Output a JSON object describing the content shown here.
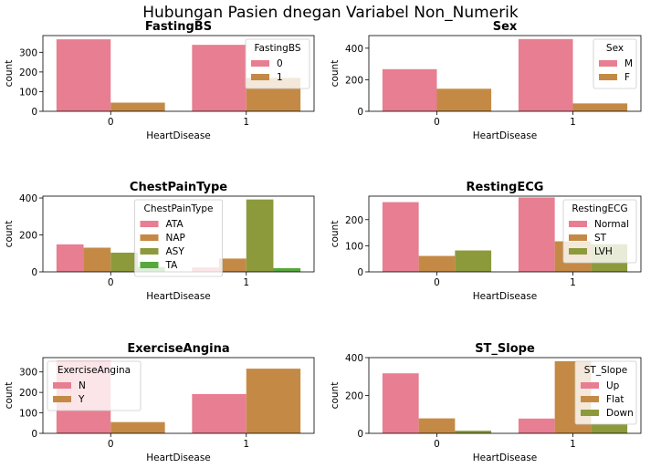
{
  "suptitle": "Hubungan Pasien dnegan Variabel Non_Numerik",
  "colors": {
    "pink": "#e87e91",
    "orange": "#c48a45",
    "olive": "#8d9a3c",
    "green": "#56a83c"
  },
  "chart_data": [
    {
      "type": "bar",
      "title": "FastingBS",
      "xlabel": "HeartDisease",
      "ylabel": "count",
      "categories": [
        "0",
        "1"
      ],
      "ylim": [
        0,
        385
      ],
      "yticks": [
        0,
        100,
        200,
        300
      ],
      "legend_title": "FastingBS",
      "legend_position": "upper right",
      "series": [
        {
          "name": "0",
          "color": "#e87e91",
          "values": [
            366,
            338
          ]
        },
        {
          "name": "1",
          "color": "#c48a45",
          "values": [
            44,
            170
          ]
        }
      ]
    },
    {
      "type": "bar",
      "title": "Sex",
      "xlabel": "HeartDisease",
      "ylabel": "count",
      "categories": [
        "0",
        "1"
      ],
      "ylim": [
        0,
        480
      ],
      "yticks": [
        0,
        200,
        400
      ],
      "legend_title": "Sex",
      "legend_position": "upper right",
      "series": [
        {
          "name": "M",
          "color": "#e87e91",
          "values": [
            267,
            458
          ]
        },
        {
          "name": "F",
          "color": "#c48a45",
          "values": [
            143,
            50
          ]
        }
      ]
    },
    {
      "type": "bar",
      "title": "ChestPainType",
      "xlabel": "HeartDisease",
      "ylabel": "count",
      "categories": [
        "0",
        "1"
      ],
      "ylim": [
        0,
        410
      ],
      "yticks": [
        0,
        200,
        400
      ],
      "legend_title": "ChestPainType",
      "legend_position": "upper center",
      "series": [
        {
          "name": "ATA",
          "color": "#e87e91",
          "values": [
            149,
            24
          ]
        },
        {
          "name": "NAP",
          "color": "#c48a45",
          "values": [
            131,
            72
          ]
        },
        {
          "name": "ASY",
          "color": "#8d9a3c",
          "values": [
            104,
            392
          ]
        },
        {
          "name": "TA",
          "color": "#56a83c",
          "values": [
            26,
            20
          ]
        }
      ]
    },
    {
      "type": "bar",
      "title": "RestingECG",
      "xlabel": "HeartDisease",
      "ylabel": "count",
      "categories": [
        "0",
        "1"
      ],
      "ylim": [
        0,
        290
      ],
      "yticks": [
        0,
        100,
        200
      ],
      "legend_title": "RestingECG",
      "legend_position": "upper right",
      "series": [
        {
          "name": "Normal",
          "color": "#e87e91",
          "values": [
            267,
            285
          ]
        },
        {
          "name": "ST",
          "color": "#c48a45",
          "values": [
            61,
            117
          ]
        },
        {
          "name": "LVH",
          "color": "#8d9a3c",
          "values": [
            82,
            106
          ]
        }
      ]
    },
    {
      "type": "bar",
      "title": "ExerciseAngina",
      "xlabel": "HeartDisease",
      "ylabel": "count",
      "categories": [
        "0",
        "1"
      ],
      "ylim": [
        0,
        370
      ],
      "yticks": [
        0,
        100,
        200,
        300
      ],
      "legend_title": "ExerciseAngina",
      "legend_position": "upper left",
      "series": [
        {
          "name": "N",
          "color": "#e87e91",
          "values": [
            355,
            192
          ]
        },
        {
          "name": "Y",
          "color": "#c48a45",
          "values": [
            55,
            316
          ]
        }
      ]
    },
    {
      "type": "bar",
      "title": "ST_Slope",
      "xlabel": "HeartDisease",
      "ylabel": "count",
      "categories": [
        "0",
        "1"
      ],
      "ylim": [
        0,
        400
      ],
      "yticks": [
        0,
        200,
        400
      ],
      "legend_title": "ST_Slope",
      "legend_position": "upper right",
      "series": [
        {
          "name": "Up",
          "color": "#e87e91",
          "values": [
            317,
            78
          ]
        },
        {
          "name": "Flat",
          "color": "#c48a45",
          "values": [
            79,
            381
          ]
        },
        {
          "name": "Down",
          "color": "#8d9a3c",
          "values": [
            14,
            49
          ]
        }
      ]
    }
  ]
}
